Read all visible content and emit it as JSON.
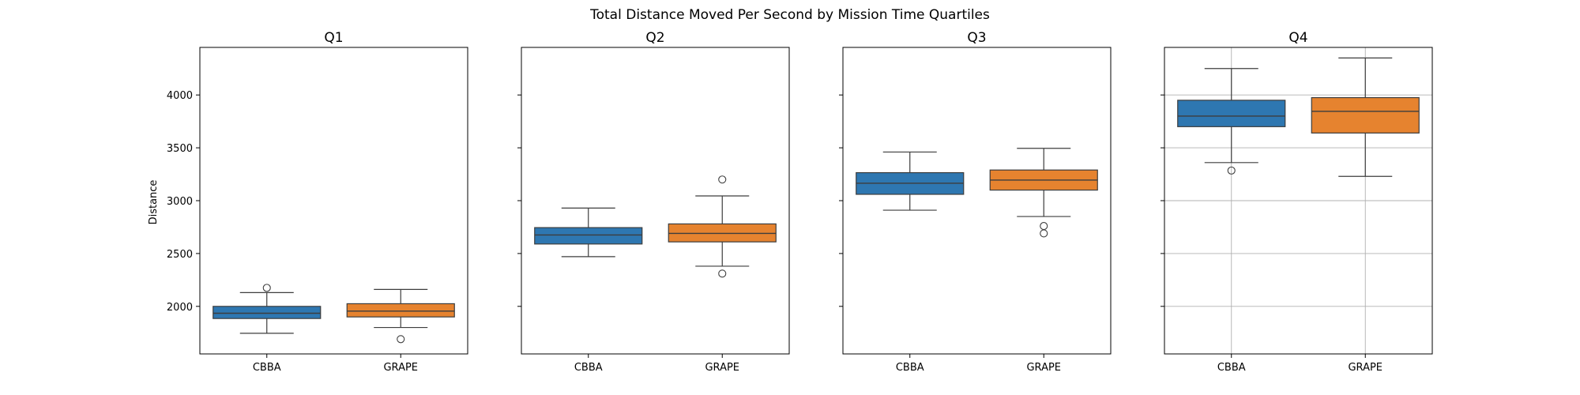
{
  "chart_data": {
    "type": "box",
    "suptitle": "Total Distance Moved Per Second by Mission Time Quartiles",
    "ylabel": "Distance",
    "ylim": [
      1550,
      4450
    ],
    "yticks": [
      2000,
      2500,
      3000,
      3500,
      4000
    ],
    "shared_y": true,
    "categories": [
      "CBBA",
      "GRAPE"
    ],
    "colors": {
      "CBBA": "#2e77b1",
      "GRAPE": "#e6832f"
    },
    "panels": [
      {
        "title": "Q1",
        "grid": false,
        "boxes": [
          {
            "category": "CBBA",
            "whisker_low": 1745,
            "q1": 1885,
            "median": 1935,
            "q3": 2000,
            "whisker_high": 2130,
            "outliers": [
              2175
            ]
          },
          {
            "category": "GRAPE",
            "whisker_low": 1800,
            "q1": 1900,
            "median": 1955,
            "q3": 2025,
            "whisker_high": 2160,
            "outliers": [
              1690
            ]
          }
        ]
      },
      {
        "title": "Q2",
        "grid": false,
        "boxes": [
          {
            "category": "CBBA",
            "whisker_low": 2470,
            "q1": 2590,
            "median": 2675,
            "q3": 2745,
            "whisker_high": 2930,
            "outliers": []
          },
          {
            "category": "GRAPE",
            "whisker_low": 2380,
            "q1": 2610,
            "median": 2690,
            "q3": 2780,
            "whisker_high": 3045,
            "outliers": [
              3200,
              2310
            ]
          }
        ]
      },
      {
        "title": "Q3",
        "grid": false,
        "boxes": [
          {
            "category": "CBBA",
            "whisker_low": 2910,
            "q1": 3060,
            "median": 3165,
            "q3": 3265,
            "whisker_high": 3460,
            "outliers": []
          },
          {
            "category": "GRAPE",
            "whisker_low": 2850,
            "q1": 3100,
            "median": 3195,
            "q3": 3290,
            "whisker_high": 3495,
            "outliers": [
              2760,
              2690
            ]
          }
        ]
      },
      {
        "title": "Q4",
        "grid": true,
        "boxes": [
          {
            "category": "CBBA",
            "whisker_low": 3360,
            "q1": 3700,
            "median": 3800,
            "q3": 3950,
            "whisker_high": 4250,
            "outliers": [
              3285
            ]
          },
          {
            "category": "GRAPE",
            "whisker_low": 3230,
            "q1": 3640,
            "median": 3845,
            "q3": 3975,
            "whisker_high": 4350,
            "outliers": []
          }
        ]
      }
    ]
  }
}
